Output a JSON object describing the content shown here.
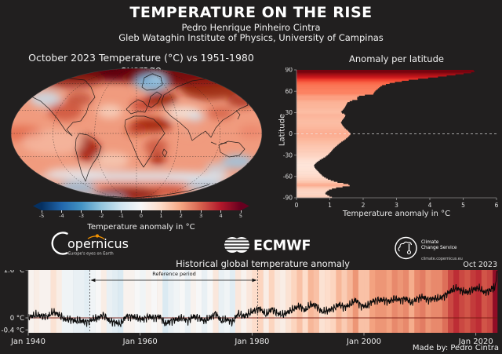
{
  "header": {
    "title": "TEMPERATURE ON THE RISE",
    "author": "Pedro Henrique Pinheiro Cintra",
    "affiliation": "Gleb Wataghin Institute of Physics, University of Campinas"
  },
  "map_panel": {
    "title": "October 2023 Temperature (°C) vs 1951-1980 average",
    "colorbar_label": "Temperature anomaly in °C",
    "colorbar_ticks": [
      -5,
      -4,
      -3,
      -2,
      -1,
      0,
      1,
      2,
      3,
      4,
      5
    ]
  },
  "latitude_panel": {
    "title": "Anomaly per latitude",
    "xlabel": "Temperature anomaly in °C",
    "ylabel": "Latitude",
    "xticks": [
      0,
      1,
      2,
      3,
      4,
      5,
      6
    ],
    "yticks": [
      90,
      60,
      30,
      0,
      -30,
      -60,
      -90
    ]
  },
  "logos": {
    "copernicus_text": "opernicus",
    "copernicus_tagline": "Europe's eyes on Earth",
    "ecmwf_text": "ECMWF",
    "c3s_line1": "Climate",
    "c3s_line2": "Change Service",
    "c3s_url": "climate.copernicus.eu"
  },
  "history_panel": {
    "title": "Historical global temperature anomaly",
    "date_label": "Oct 2023",
    "credit": "Made by: Pedro Cintra",
    "reference_label": "Reference period",
    "ytick_labels": [
      "1.6 °C",
      "0 °C",
      "-0.4 °C"
    ],
    "ytick_values": [
      1.6,
      0,
      -0.4
    ],
    "xtick_labels": [
      "Jan 1940",
      "Jan 1960",
      "Jan 1980",
      "Jan 2000",
      "Jan 2020"
    ],
    "xtick_values": [
      1940,
      1960,
      1980,
      2000,
      2020
    ]
  },
  "colors": {
    "background": "#211f1f",
    "zero_line": "#7a1a12",
    "accent_orange": "#f39200"
  },
  "chart_data": [
    {
      "type": "heatmap",
      "title": "October 2023 Temperature (°C) vs 1951-1980 average",
      "projection": "mollweide",
      "colorbar_label": "Temperature anomaly in °C",
      "colorbar_range": [
        -5,
        5
      ],
      "base_color": "#f09b7e",
      "anomaly_blobs": [
        [
          161,
          5,
          150,
          13,
          "#600008",
          1
        ],
        [
          215,
          13,
          75,
          12,
          "#7a0c0c",
          0.9
        ],
        [
          75,
          15,
          45,
          11,
          "#8c180c",
          0.75
        ],
        [
          180,
          19,
          21,
          11,
          "#7fb8dd",
          0.95
        ],
        [
          187,
          13,
          9,
          5,
          "#a8d3ea",
          0.9
        ],
        [
          45,
          40,
          20,
          10,
          "#c8dcea",
          0.85
        ],
        [
          70,
          56,
          22,
          12,
          "#c94a32",
          0.75
        ],
        [
          88,
          40,
          17,
          9,
          "#b03020",
          0.6
        ],
        [
          127,
          56,
          16,
          9,
          "#f6cdb9",
          0.9
        ],
        [
          170,
          48,
          16,
          8,
          "#bf3a28",
          0.8
        ],
        [
          193,
          40,
          20,
          10,
          "#8e1508",
          0.8
        ],
        [
          255,
          26,
          38,
          15,
          "#8e1508",
          0.8
        ],
        [
          295,
          42,
          18,
          9,
          "#a02010",
          0.75
        ],
        [
          222,
          58,
          22,
          9,
          "#f2ddd2",
          0.95
        ],
        [
          237,
          63,
          10,
          5,
          "#cfe2ee",
          0.85
        ],
        [
          180,
          73,
          26,
          9,
          "#9c1405",
          0.85
        ],
        [
          160,
          79,
          14,
          8,
          "#b83218",
          0.6
        ],
        [
          230,
          81,
          12,
          7,
          "#eba187",
          0.85
        ],
        [
          268,
          58,
          17,
          9,
          "#d05a40",
          0.7
        ],
        [
          186,
          101,
          15,
          11,
          "#c04028",
          0.65
        ],
        [
          188,
          117,
          10,
          8,
          "#9c1405",
          0.7
        ],
        [
          100,
          106,
          16,
          14,
          "#9c1405",
          0.8
        ],
        [
          95,
          92,
          10,
          7,
          "#8e1508",
          0.6
        ],
        [
          15,
          84,
          28,
          10,
          "#e4694a",
          0.8
        ],
        [
          308,
          82,
          17,
          9,
          "#ec8468",
          0.75
        ],
        [
          290,
          120,
          20,
          9,
          "#9cc6e2",
          0.85
        ],
        [
          263,
          129,
          14,
          7,
          "#c2dcec",
          0.7
        ],
        [
          130,
          118,
          22,
          10,
          "#f6cdb9",
          0.8
        ],
        [
          55,
          95,
          40,
          16,
          "#f6c3ae",
          0.6
        ],
        [
          161,
          139,
          125,
          7,
          "#dce9f2",
          0.8
        ],
        [
          85,
          133,
          38,
          6,
          "#e8f0f5",
          0.6
        ],
        [
          238,
          141,
          38,
          6,
          "#dce9f2",
          0.65
        ],
        [
          160,
          149,
          95,
          5,
          "#e8795c",
          0.65
        ],
        [
          150,
          161,
          42,
          9,
          "#8e1508",
          0.9
        ],
        [
          202,
          157,
          22,
          7,
          "#c04028",
          0.7
        ],
        [
          85,
          153,
          24,
          8,
          "#8fc0e0",
          0.8
        ],
        [
          250,
          151,
          26,
          7,
          "#a9cfe8",
          0.75
        ],
        [
          120,
          165,
          28,
          5,
          "#8fc0e0",
          0.7
        ]
      ],
      "continent_outlines": [
        "M22,31 L34,23 L54,17 L76,14 L95,16 L103,25 L108,38 L100,48 L97,58 L90,68 L80,70 L72,79 L79,87 L71,81 L60,65 L50,53 L39,43 L27,37 Z",
        "M168,25 L171,13 L181,8 L192,12 L194,22 L185,28 L174,29 Z",
        "M88,84 L99,86 L109,92 L116,101 L112,113 L105,123 L100,133 L96,145 L91,134 L87,119 L83,103 L84,91 Z",
        "M148,53 L155,46 L163,41 L170,44 L175,50 L172,57 L163,56 L154,59 Z",
        "M176,49 L179,37 L187,31 L193,35 L188,45 L180,51 Z",
        "M147,67 L158,62 L171,62 L183,66 L191,74 L197,84 L190,93 L184,103 L178,115 L170,127 L163,116 L157,101 L150,86 L146,75 Z",
        "M196,104 L200,108 L197,114 L194,109 Z",
        "M196,35 L212,25 L232,17 L253,14 L273,18 L289,27 L299,37 L303,48 L292,53 L281,61 L271,67 L262,77 L256,89 L249,81 L240,87 L232,93 L227,80 L216,70 L205,62 L197,54 L193,44 Z",
        "M288,55 L293,60 L290,66",
        "M256,95 L263,98 M268,97 L276,96",
        "M266,99 L278,94 L292,96 L299,104 L292,112 L279,114 L268,108 Z",
        "M302,122 L306,128",
        "M60,152 L90,159 L122,164 L158,166 L194,163 L228,157 L254,149"
      ]
    },
    {
      "type": "area",
      "title": "Anomaly per latitude",
      "xlabel": "Temperature anomaly in °C",
      "ylabel": "Latitude",
      "xlim": [
        0,
        6
      ],
      "ylim": [
        -90,
        90
      ],
      "zero_latitude_dashed_line": true,
      "points": [
        [
          90,
          5.3
        ],
        [
          87,
          5.35
        ],
        [
          84,
          4.9
        ],
        [
          80,
          4.2
        ],
        [
          76,
          3.4
        ],
        [
          72,
          2.85
        ],
        [
          68,
          2.55
        ],
        [
          64,
          2.45
        ],
        [
          60,
          2.35
        ],
        [
          56,
          2.3
        ],
        [
          54,
          1.9
        ],
        [
          51,
          1.8
        ],
        [
          49,
          1.85
        ],
        [
          47,
          1.65
        ],
        [
          44,
          1.52
        ],
        [
          40,
          1.48
        ],
        [
          36,
          1.43
        ],
        [
          32,
          1.35
        ],
        [
          30,
          1.33
        ],
        [
          27,
          1.47
        ],
        [
          24,
          1.45
        ],
        [
          20,
          1.38
        ],
        [
          16,
          1.33
        ],
        [
          12,
          1.38
        ],
        [
          8,
          1.45
        ],
        [
          4,
          1.55
        ],
        [
          0,
          1.63
        ],
        [
          -4,
          1.55
        ],
        [
          -8,
          1.45
        ],
        [
          -12,
          1.32
        ],
        [
          -16,
          1.22
        ],
        [
          -20,
          1.12
        ],
        [
          -24,
          1.05
        ],
        [
          -28,
          0.97
        ],
        [
          -32,
          0.87
        ],
        [
          -36,
          0.72
        ],
        [
          -40,
          0.6
        ],
        [
          -44,
          0.52
        ],
        [
          -48,
          0.55
        ],
        [
          -52,
          0.63
        ],
        [
          -56,
          0.71
        ],
        [
          -60,
          0.8
        ],
        [
          -64,
          0.95
        ],
        [
          -68,
          1.2
        ],
        [
          -71,
          1.55
        ],
        [
          -73,
          1.6
        ],
        [
          -75,
          1.25
        ],
        [
          -78,
          1.0
        ],
        [
          -81,
          0.9
        ],
        [
          -84,
          0.85
        ],
        [
          -87,
          0.95
        ],
        [
          -90,
          1.1
        ]
      ]
    },
    {
      "type": "line",
      "title": "Historical global temperature anomaly",
      "x_start": 1940,
      "x_end": 2023.83,
      "ylim": [
        -0.5,
        1.65
      ],
      "reference_period": [
        1951,
        1981
      ],
      "end_label": "Oct 2023",
      "annual_start_year": 1940,
      "annual_values": [
        0.05,
        0.1,
        0.05,
        0.05,
        0.2,
        0.1,
        -0.05,
        -0.05,
        -0.1,
        -0.1,
        -0.15,
        -0.05,
        0.0,
        0.1,
        -0.1,
        -0.15,
        -0.2,
        0.05,
        0.05,
        0.0,
        -0.05,
        0.05,
        0.0,
        0.05,
        -0.2,
        -0.1,
        -0.05,
        0.0,
        -0.1,
        0.05,
        0.0,
        -0.1,
        0.0,
        0.15,
        -0.1,
        -0.05,
        -0.15,
        0.15,
        0.05,
        0.15,
        0.25,
        0.3,
        0.1,
        0.3,
        0.15,
        0.1,
        0.2,
        0.3,
        0.4,
        0.25,
        0.45,
        0.4,
        0.2,
        0.25,
        0.3,
        0.45,
        0.35,
        0.45,
        0.6,
        0.4,
        0.4,
        0.55,
        0.6,
        0.6,
        0.55,
        0.65,
        0.6,
        0.65,
        0.5,
        0.65,
        0.7,
        0.6,
        0.65,
        0.65,
        0.75,
        0.9,
        1.0,
        0.9,
        0.85,
        0.95,
        1.0,
        0.85,
        0.9,
        1.2
      ],
      "monthly_2023": [
        0.85,
        0.95,
        1.15,
        0.95,
        0.95,
        1.05,
        1.15,
        1.25,
        1.5,
        1.55
      ],
      "stripe_color_domain": [
        -1.35,
        1.35
      ]
    }
  ]
}
